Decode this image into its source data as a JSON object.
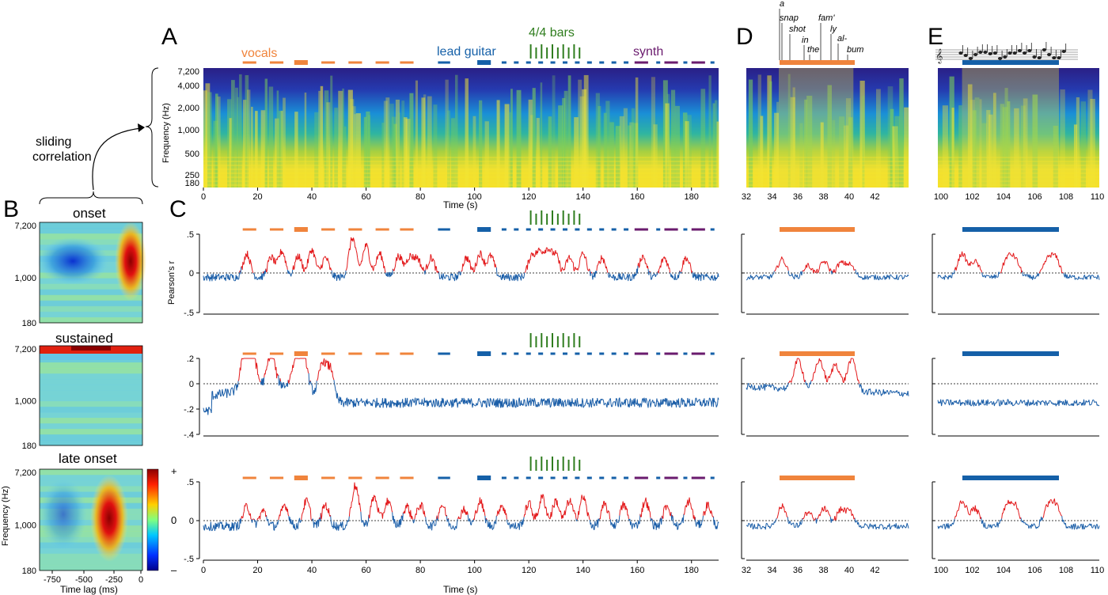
{
  "panel_letters": {
    "a": "A",
    "b": "B",
    "c": "C",
    "d": "D",
    "e": "E"
  },
  "annotations": {
    "vocals": "vocals",
    "lead_guitar": "lead guitar",
    "bars": "4/4 bars",
    "synth": "synth",
    "sliding_1": "sliding",
    "sliding_2": "correlation"
  },
  "lyrics": [
    "a",
    "snap",
    "shot",
    "in",
    "the",
    "fam'",
    "ly",
    "al-",
    "bum"
  ],
  "colors": {
    "vocals": "#f0843c",
    "guitar": "#1560a8",
    "synth": "#6a1b6e",
    "bars": "#2f7d1e",
    "trace_neg": "#1b5ea8",
    "trace_pos": "#e31a1c"
  },
  "spectrogram": {
    "ylabel": "Frequency (Hz)",
    "yticks": [
      "7,200",
      "4,000",
      "2,000",
      "1,000",
      "500",
      "250",
      "180"
    ],
    "xlabel": "Time (s)",
    "xticks": [
      "0",
      "20",
      "40",
      "60",
      "80",
      "100",
      "120",
      "140",
      "160",
      "180"
    ],
    "xlim": [
      0,
      190
    ],
    "d_xticks": [
      "32",
      "34",
      "36",
      "38",
      "40",
      "42"
    ],
    "e_xticks": [
      "100",
      "102",
      "104",
      "106",
      "108",
      "110"
    ]
  },
  "strfs": {
    "titles": [
      "onset",
      "sustained",
      "late onset"
    ],
    "yticks": [
      "7,200",
      "1,000",
      "180"
    ],
    "ylabel": "Frequency (Hz)",
    "xlabel": "Time lag (ms)",
    "xticks": [
      "-750",
      "-500",
      "-250",
      "0"
    ],
    "colorbar": [
      "+",
      "0",
      "–"
    ]
  },
  "correlation": {
    "ylabel": "Pearson's r",
    "row1_yticks": [
      ".5",
      "0",
      "-.5"
    ],
    "row2_yticks": [
      ".2",
      "0",
      "-.2",
      "-.4"
    ],
    "row3_yticks": [
      ".5",
      "0",
      "-.5"
    ],
    "xlabel": "Time (s)",
    "xticks": [
      "0",
      "20",
      "40",
      "60",
      "80",
      "100",
      "120",
      "140",
      "160",
      "180"
    ],
    "d_xticks": [
      "32",
      "34",
      "36",
      "38",
      "40",
      "42"
    ],
    "e_xticks": [
      "100",
      "102",
      "104",
      "106",
      "108",
      "110"
    ]
  },
  "chart_data": {
    "type": "line",
    "title": "",
    "xlabel": "Time (s)",
    "ylabel": "Pearson's r",
    "xlim": [
      0,
      190
    ],
    "segments": {
      "vocals": [
        [
          14.5,
          19.5
        ],
        [
          24.5,
          29.5
        ],
        [
          33.5,
          38.5
        ],
        [
          43.5,
          48.5
        ],
        [
          53.5,
          58.5
        ],
        [
          63.5,
          68.5
        ],
        [
          72.5,
          77.5
        ]
      ],
      "lead_guitar": [
        [
          86.5,
          91
        ],
        [
          101,
          106
        ]
      ],
      "synth": [
        [
          159,
          164
        ],
        [
          170,
          175
        ],
        [
          180,
          185
        ]
      ],
      "bars": [
        121,
        123,
        125,
        127,
        129,
        131,
        133,
        135,
        137,
        139
      ]
    },
    "rows": [
      {
        "name": "onset",
        "ylim": [
          -0.5,
          0.5
        ],
        "peaks": [
          [
            16,
            0.25
          ],
          [
            25,
            0.2
          ],
          [
            29,
            0.28
          ],
          [
            35,
            0.22
          ],
          [
            40,
            0.3
          ],
          [
            45,
            0.2
          ],
          [
            55,
            0.45
          ],
          [
            60,
            0.35
          ],
          [
            65,
            0.25
          ],
          [
            72,
            0.22
          ],
          [
            76,
            0.2
          ],
          [
            79,
            0.18
          ],
          [
            84,
            0.2
          ],
          [
            97,
            0.2
          ],
          [
            102,
            0.25
          ],
          [
            106,
            0.22
          ],
          [
            121,
            0.22
          ],
          [
            124,
            0.25
          ],
          [
            127,
            0.28
          ],
          [
            130,
            0.22
          ],
          [
            135,
            0.2
          ],
          [
            140,
            0.25
          ],
          [
            147,
            0.2
          ],
          [
            162,
            0.22
          ],
          [
            170,
            0.2
          ],
          [
            178,
            0.2
          ]
        ]
      },
      {
        "name": "sustained",
        "ylim": [
          -0.4,
          0.2
        ],
        "peaks": [
          [
            15,
            0.12
          ],
          [
            18,
            0.15
          ],
          [
            25,
            0.1
          ],
          [
            34,
            0.08
          ],
          [
            37,
            0.15
          ],
          [
            44,
            0.1
          ],
          [
            47,
            0.05
          ]
        ]
      },
      {
        "name": "late onset",
        "ylim": [
          -0.5,
          0.5
        ],
        "peaks": [
          [
            16,
            0.18
          ],
          [
            22,
            0.12
          ],
          [
            30,
            0.2
          ],
          [
            38,
            0.25
          ],
          [
            45,
            0.2
          ],
          [
            56,
            0.45
          ],
          [
            63,
            0.3
          ],
          [
            68,
            0.25
          ],
          [
            75,
            0.18
          ],
          [
            80,
            0.2
          ],
          [
            88,
            0.2
          ],
          [
            96,
            0.15
          ],
          [
            102,
            0.25
          ],
          [
            110,
            0.2
          ],
          [
            120,
            0.22
          ],
          [
            125,
            0.3
          ],
          [
            130,
            0.25
          ],
          [
            135,
            0.25
          ],
          [
            140,
            0.3
          ],
          [
            148,
            0.2
          ],
          [
            155,
            0.2
          ],
          [
            163,
            0.25
          ],
          [
            171,
            0.2
          ],
          [
            179,
            0.25
          ],
          [
            186,
            0.2
          ]
        ]
      }
    ]
  }
}
